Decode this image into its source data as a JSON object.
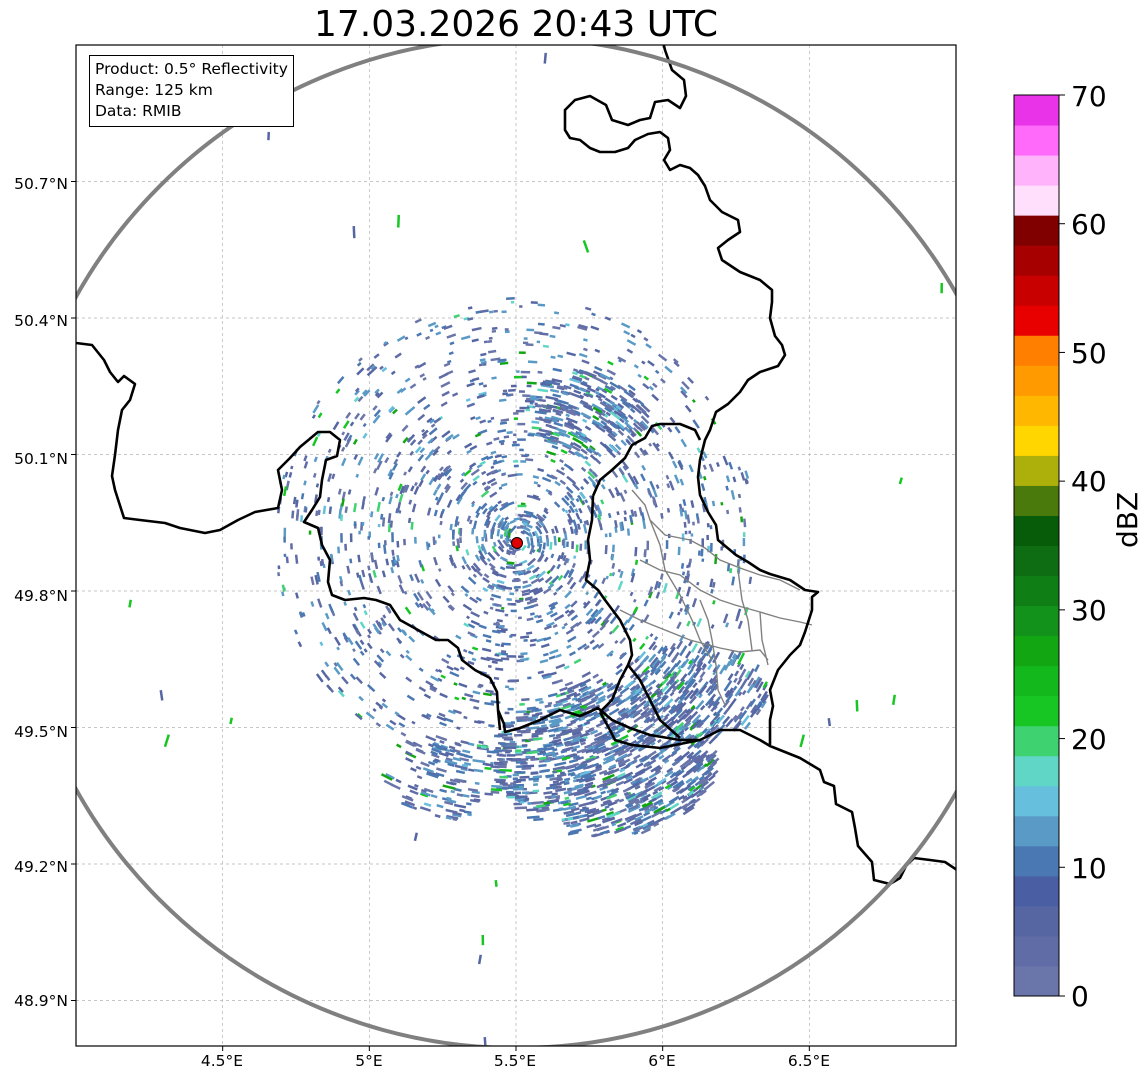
{
  "title": "17.03.2026 20:43 UTC",
  "info_box": {
    "product": "Product: 0.5° Reflectivity",
    "range": "Range: 125 km",
    "data": "Data: RMIB"
  },
  "map": {
    "lon_range": [
      4.0,
      7.0
    ],
    "lat_range": [
      48.8,
      51.0
    ],
    "x_ticks": [
      "4.5°E",
      "5°E",
      "5.5°E",
      "6°E",
      "6.5°E"
    ],
    "x_tick_values": [
      4.5,
      5.0,
      5.5,
      6.0,
      6.5
    ],
    "y_ticks": [
      "50.7°N",
      "50.4°N",
      "50.1°N",
      "49.8°N",
      "49.5°N",
      "49.2°N",
      "48.9°N"
    ],
    "y_tick_values": [
      50.7,
      50.4,
      50.1,
      49.8,
      49.5,
      49.2,
      48.9
    ],
    "radar_site": {
      "lon": 5.505,
      "lat": 49.914
    },
    "range_km": 125,
    "colors": {
      "border": "#000000",
      "range_ring": "#808080",
      "site": "#e00000",
      "grid": "#b4b4b4",
      "province": "#808080"
    }
  },
  "colorbar": {
    "label": "dBZ",
    "min": 0,
    "max": 70,
    "step": 2.5,
    "ticks": [
      "0",
      "10",
      "20",
      "30",
      "40",
      "50",
      "60",
      "70"
    ],
    "tick_values": [
      0,
      10,
      20,
      30,
      40,
      50,
      60,
      70
    ],
    "colors": [
      "#6a76aa",
      "#5f6ca6",
      "#5566a3",
      "#4a5fa3",
      "#4a78b2",
      "#5a9ac6",
      "#66bfdd",
      "#5fd6c6",
      "#3ed270",
      "#17c623",
      "#12b81c",
      "#12a712",
      "#12921a",
      "#0f7e14",
      "#0e6c12",
      "#075c0a",
      "#4a7a0c",
      "#adb00a",
      "#ffd600",
      "#ffb700",
      "#ff9a00",
      "#ff7f00",
      "#e80000",
      "#c80000",
      "#a60000",
      "#800000",
      "#ffdffb",
      "#ffb3fb",
      "#ff6afa",
      "#e833e8"
    ]
  }
}
